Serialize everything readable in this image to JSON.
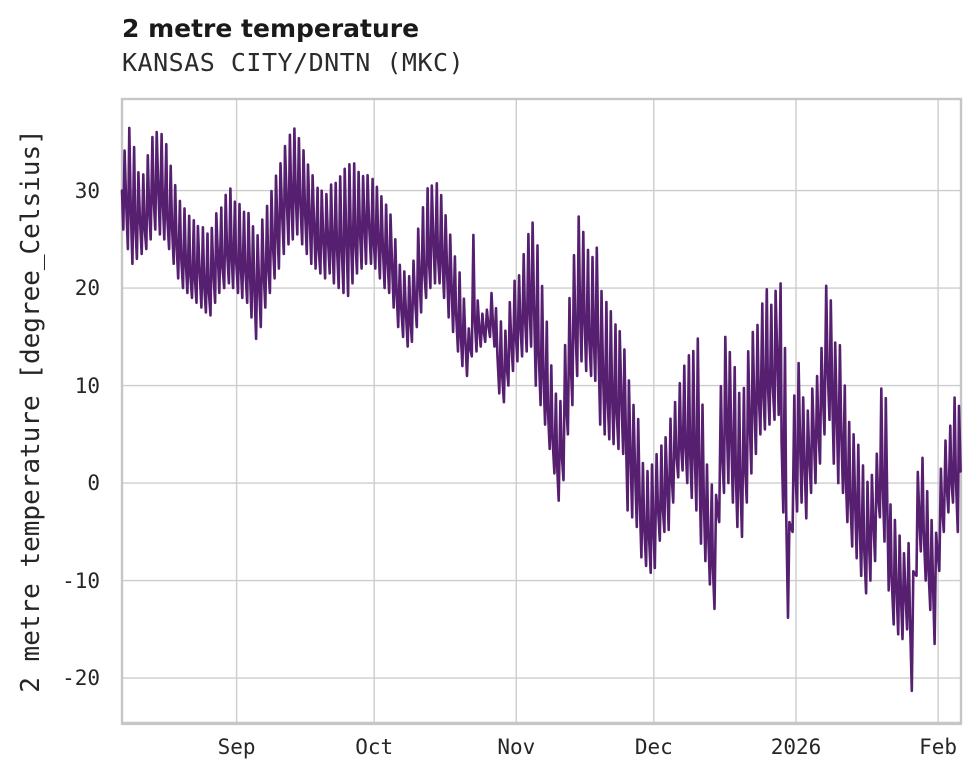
{
  "figure": {
    "title": "2 metre temperature",
    "subtitle": "KANSAS CITY/DNTN (MKC)"
  },
  "chart_data": {
    "type": "line",
    "title": "2 metre temperature",
    "subtitle": "KANSAS CITY/DNTN (MKC)",
    "xlabel": "",
    "ylabel": "2 metre temperature [degree_Celsius]",
    "ylim": [
      -24.6,
      39.4
    ],
    "yticks": [
      30,
      20,
      10,
      0,
      -10,
      -20
    ],
    "grid": true,
    "legend_position": "none",
    "x_axis": {
      "unit": "day",
      "start": "2025-08-07",
      "days": 183,
      "ticks": [
        {
          "day": 25,
          "label": "Sep"
        },
        {
          "day": 55,
          "label": "Oct"
        },
        {
          "day": 86,
          "label": "Nov"
        },
        {
          "day": 116,
          "label": "Dec"
        },
        {
          "day": 147,
          "label": "2026"
        },
        {
          "day": 178,
          "label": "Feb"
        }
      ]
    },
    "colors": {
      "line": "#561F70",
      "grid": "#CDCDCD",
      "spine": "#C6C6C6",
      "text": "#262626"
    },
    "series": [
      {
        "name": "2 metre temperature",
        "encoding": "per-day [daily_min, daily_max] in degree_Celsius, day 0 = 2025-08-07",
        "daily_min_max": [
          [
            26,
            34
          ],
          [
            24,
            36.4
          ],
          [
            22.5,
            34.5
          ],
          [
            23,
            32
          ],
          [
            23.5,
            31.5
          ],
          [
            24,
            33.5
          ],
          [
            25,
            35.5
          ],
          [
            26,
            36
          ],
          [
            25.5,
            35.8
          ],
          [
            25,
            35
          ],
          [
            24,
            32.5
          ],
          [
            22.5,
            30.5
          ],
          [
            21,
            29
          ],
          [
            20,
            28
          ],
          [
            19.5,
            27.5
          ],
          [
            19,
            27
          ],
          [
            18.5,
            26.5
          ],
          [
            18,
            26
          ],
          [
            17.5,
            25.5
          ],
          [
            17.2,
            26
          ],
          [
            18.5,
            27.5
          ],
          [
            19.5,
            28.5
          ],
          [
            20,
            29.5
          ],
          [
            20.5,
            30
          ],
          [
            20,
            29
          ],
          [
            19.5,
            28.5
          ],
          [
            19,
            28
          ],
          [
            18.5,
            27.5
          ],
          [
            17,
            26.5
          ],
          [
            14.8,
            25.5
          ],
          [
            16,
            27
          ],
          [
            18,
            28.5
          ],
          [
            19.5,
            30
          ],
          [
            21,
            31.5
          ],
          [
            22,
            33
          ],
          [
            23.5,
            34.5
          ],
          [
            24.5,
            35.5
          ],
          [
            25,
            36.5
          ],
          [
            25.5,
            35.5
          ],
          [
            24.5,
            34
          ],
          [
            23.5,
            32.5
          ],
          [
            22.5,
            31.5
          ],
          [
            22,
            30.5
          ],
          [
            21.5,
            30
          ],
          [
            21,
            29.5
          ],
          [
            21.5,
            30.5
          ],
          [
            20.5,
            31
          ],
          [
            20,
            31.5
          ],
          [
            19.5,
            32
          ],
          [
            19.2,
            32.5
          ],
          [
            20.5,
            32.8
          ],
          [
            21.5,
            32
          ],
          [
            22,
            31.5
          ],
          [
            22.5,
            31.8
          ],
          [
            22.5,
            31
          ],
          [
            22,
            30.5
          ],
          [
            21,
            29.5
          ],
          [
            20,
            28.5
          ],
          [
            19.5,
            27.5
          ],
          [
            18,
            25
          ],
          [
            16,
            22.5
          ],
          [
            15,
            21.5
          ],
          [
            14,
            21
          ],
          [
            14.5,
            23
          ],
          [
            16,
            26
          ],
          [
            17.5,
            28.5
          ],
          [
            19,
            30
          ],
          [
            20,
            30.5
          ],
          [
            20.5,
            30.8
          ],
          [
            20.5,
            29.5
          ],
          [
            19,
            27.5
          ],
          [
            17,
            25.5
          ],
          [
            15.5,
            23.5
          ],
          [
            13.5,
            21.5
          ],
          [
            12,
            19
          ],
          [
            11,
            16
          ],
          [
            13,
            25.3
          ],
          [
            13.5,
            18.5
          ],
          [
            14,
            17.5
          ],
          [
            14.5,
            18
          ],
          [
            15,
            19.5
          ],
          [
            14,
            18
          ],
          [
            9.2,
            16.5
          ],
          [
            8.3,
            15.5
          ],
          [
            10,
            18.5
          ],
          [
            11.5,
            20.7
          ],
          [
            12.5,
            21.5
          ],
          [
            13,
            23.5
          ],
          [
            13.5,
            25.5
          ],
          [
            14,
            26.9
          ],
          [
            10,
            24.5
          ],
          [
            8,
            20
          ],
          [
            6,
            16.5
          ],
          [
            3.5,
            12
          ],
          [
            1,
            9
          ],
          [
            -1.8,
            8.5
          ],
          [
            0.3,
            14
          ],
          [
            5,
            19
          ],
          [
            8,
            23.5
          ],
          [
            11,
            27.3
          ],
          [
            12.5,
            26
          ],
          [
            11.5,
            24
          ],
          [
            11,
            23
          ],
          [
            10.5,
            24.3
          ],
          [
            6,
            19.5
          ],
          [
            5,
            18.5
          ],
          [
            4.5,
            17.5
          ],
          [
            4,
            16.5
          ],
          [
            3.5,
            15.5
          ],
          [
            3,
            13.5
          ],
          [
            -2.8,
            10.5
          ],
          [
            -3.5,
            8
          ],
          [
            -4.5,
            6.5
          ],
          [
            -7.6,
            2
          ],
          [
            -8.5,
            1
          ],
          [
            -9.2,
            1.7
          ],
          [
            -8.7,
            3.2
          ],
          [
            -5.9,
            3.7
          ],
          [
            -5,
            4.5
          ],
          [
            -4.8,
            6.7
          ],
          [
            -2,
            8.5
          ],
          [
            0.6,
            10
          ],
          [
            1.3,
            12
          ],
          [
            0,
            13
          ],
          [
            -1.5,
            13.5
          ],
          [
            -2.8,
            14.7
          ],
          [
            -6.2,
            8
          ],
          [
            -8,
            2
          ],
          [
            -10.4,
            0
          ],
          [
            -12.9,
            -1
          ],
          [
            -4,
            10
          ],
          [
            -1,
            14.8
          ],
          [
            0,
            13.5
          ],
          [
            -2,
            12
          ],
          [
            -4.5,
            9.5
          ],
          [
            -5.5,
            10
          ],
          [
            -2,
            13.5
          ],
          [
            1,
            15.5
          ],
          [
            3,
            16.3
          ],
          [
            5,
            18.5
          ],
          [
            5.5,
            20.1
          ],
          [
            6,
            18.5
          ],
          [
            6.5,
            19.5
          ],
          [
            7,
            20.7
          ],
          [
            -3,
            14
          ],
          [
            -13.8,
            -4
          ],
          [
            -5,
            9
          ],
          [
            -2.9,
            12.4
          ],
          [
            -2,
            9
          ],
          [
            -3.6,
            7.5
          ],
          [
            -1,
            9.5
          ],
          [
            0,
            11
          ],
          [
            2,
            14
          ],
          [
            5,
            20.4
          ],
          [
            6.5,
            18.5
          ],
          [
            2,
            14.5
          ],
          [
            0,
            14.3
          ],
          [
            -1,
            10
          ],
          [
            -4,
            6.5
          ],
          [
            -6.5,
            5
          ],
          [
            -7.7,
            4
          ],
          [
            -9.5,
            2
          ],
          [
            -11.3,
            0
          ],
          [
            -10,
            1
          ],
          [
            -8,
            3
          ],
          [
            -3.5,
            9.5
          ],
          [
            -6,
            8.5
          ],
          [
            -11,
            -2
          ],
          [
            -14.5,
            -4
          ],
          [
            -15.5,
            -5.5
          ],
          [
            -16,
            -7
          ],
          [
            -15,
            -6
          ],
          [
            -21.3,
            -9
          ],
          [
            -9.5,
            1
          ],
          [
            -7,
            2.8
          ],
          [
            -10,
            -1
          ],
          [
            -13,
            -4
          ],
          [
            -16.5,
            -5
          ],
          [
            -9,
            1.5
          ],
          [
            -5,
            4.5
          ],
          [
            -3,
            6
          ],
          [
            -2,
            8.9
          ],
          [
            -5,
            7.8
          ]
        ]
      }
    ]
  }
}
